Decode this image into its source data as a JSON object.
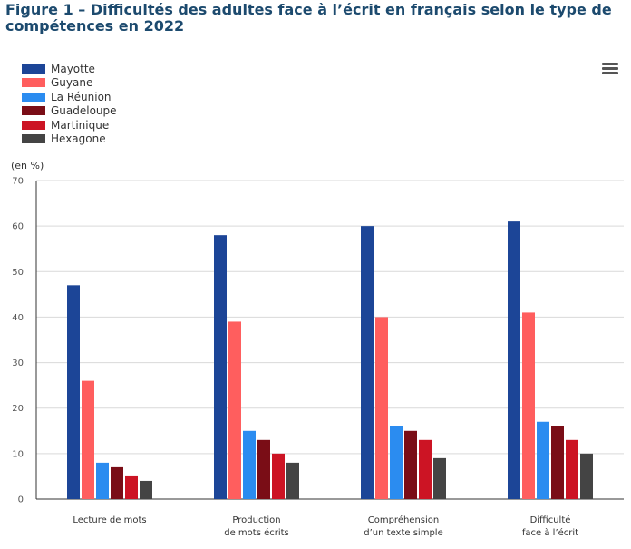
{
  "title": "Figure 1 – Difficultés des adultes face à l’écrit en français selon le type de compétences en 2022",
  "menu_icon": "hamburger-menu-icon",
  "chart_data": {
    "type": "bar",
    "unit_label": "(en %)",
    "ylim": [
      0,
      70
    ],
    "yticks": [
      0,
      10,
      20,
      30,
      40,
      50,
      60,
      70
    ],
    "grid": true,
    "legend_position": "top-left",
    "categories": [
      [
        "Lecture de mots"
      ],
      [
        "Production",
        "de mots écrits"
      ],
      [
        "Compréhension",
        "d’un texte simple"
      ],
      [
        "Difficulté",
        "face à l’écrit"
      ]
    ],
    "series": [
      {
        "name": "Mayotte",
        "color": "#1c4597",
        "values": [
          47,
          58,
          60,
          61
        ]
      },
      {
        "name": "Guyane",
        "color": "#ff5e5e",
        "values": [
          26,
          39,
          40,
          41
        ]
      },
      {
        "name": "La Réunion",
        "color": "#2b8cf0",
        "values": [
          8,
          15,
          16,
          17
        ]
      },
      {
        "name": "Guadeloupe",
        "color": "#7a0d16",
        "values": [
          7,
          13,
          15,
          16
        ]
      },
      {
        "name": "Martinique",
        "color": "#cc1424",
        "values": [
          5,
          10,
          13,
          13
        ]
      },
      {
        "name": "Hexagone",
        "color": "#444444",
        "values": [
          4,
          8,
          9,
          10
        ]
      }
    ]
  }
}
